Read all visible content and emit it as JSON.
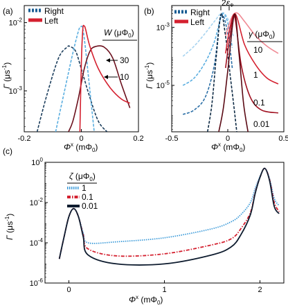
{
  "chart_data": [
    {
      "panel": "(a)",
      "type": "line",
      "xlabel": "Φˣ (mΦ₀)",
      "ylabel": "Γ (μs⁻¹)",
      "xlim": [
        -0.2,
        0.2
      ],
      "ylim_log10": [
        -3.6,
        -1.75
      ],
      "x_ticks": [
        "-0.2",
        "0",
        "0.2"
      ],
      "y_ticks": [
        "10⁻³",
        "10⁻²"
      ],
      "legend": [
        "Right",
        "Left"
      ],
      "legend2_title": "W (μΦ₀)",
      "annotations": [
        "30",
        "10"
      ],
      "series": [
        {
          "name": "Right",
          "param": "30",
          "style": "dashed",
          "color": "#1b3d5c",
          "x": [
            -0.155,
            -0.12,
            -0.08,
            -0.05,
            -0.04,
            -0.02,
            0.0,
            0.03,
            0.06,
            0.09
          ],
          "y": [
            -3.6,
            -3.05,
            -2.52,
            -2.36,
            -2.35,
            -2.42,
            -2.68,
            -3.1,
            -3.45,
            -3.6
          ]
        },
        {
          "name": "Right",
          "param": "10",
          "style": "dashed",
          "color": "#5aaee0",
          "x": [
            -0.09,
            -0.06,
            -0.03,
            -0.01,
            -0.002,
            0.005,
            0.015,
            0.03,
            0.045
          ],
          "y": [
            -3.6,
            -3.02,
            -2.45,
            -2.12,
            -2.06,
            -2.09,
            -2.4,
            -3.0,
            -3.6
          ]
        },
        {
          "name": "Left",
          "param": "30",
          "style": "solid",
          "color": "#6b0f1c",
          "x": [
            -0.045,
            -0.03,
            -0.01,
            0.01,
            0.03,
            0.05,
            0.08,
            0.11,
            0.14,
            0.17
          ],
          "y": [
            -3.6,
            -3.45,
            -3.1,
            -2.68,
            -2.42,
            -2.35,
            -2.36,
            -2.52,
            -2.9,
            -3.25
          ]
        },
        {
          "name": "Left",
          "param": "10",
          "style": "solid",
          "color": "#d4202f",
          "x": [
            -0.005,
            0.0,
            0.005,
            0.01,
            0.015,
            0.03,
            0.06,
            0.1,
            0.14,
            0.17
          ],
          "y": [
            -3.6,
            -2.6,
            -2.1,
            -2.05,
            -2.1,
            -2.35,
            -2.68,
            -2.95,
            -3.12,
            -3.18
          ]
        }
      ]
    },
    {
      "panel": "(b)",
      "type": "line",
      "xlabel": "Φˣ (mΦ₀)",
      "ylabel": "Γ (μs⁻¹)",
      "xlim": [
        -0.5,
        0.5
      ],
      "ylim_log10": [
        -6.6,
        -2.25
      ],
      "x_ticks": [
        "-0.5",
        "0",
        "0.5"
      ],
      "y_ticks": [
        "10⁻⁵",
        "10⁻³"
      ],
      "legend": [
        "Right",
        "Left"
      ],
      "legend2_title": "γ (μΦ₀)",
      "top_annotation": "2ε_Φ",
      "annotations": [
        "10",
        "1",
        "0.1",
        "0.01"
      ],
      "series": [
        {
          "name": "Right",
          "param": "10",
          "style": "dashed",
          "color": "#a8d4f0",
          "x": [
            -0.4,
            -0.3,
            -0.2,
            -0.12,
            -0.05,
            0.0,
            0.05
          ],
          "y": [
            -4.0,
            -3.65,
            -3.2,
            -2.8,
            -2.5,
            -2.7,
            -3.3
          ]
        },
        {
          "name": "Right",
          "param": "1",
          "style": "dashed",
          "color": "#5aaee0",
          "x": [
            -0.4,
            -0.3,
            -0.2,
            -0.12,
            -0.05,
            0.0,
            0.04
          ],
          "y": [
            -5.0,
            -4.75,
            -4.2,
            -3.5,
            -2.55,
            -2.85,
            -3.7
          ]
        },
        {
          "name": "Right",
          "param": "0.1",
          "style": "dashed",
          "color": "#2a6ea6",
          "x": [
            -0.4,
            -0.3,
            -0.2,
            -0.12,
            -0.06,
            0.0,
            0.04
          ],
          "y": [
            -6.0,
            -5.85,
            -5.4,
            -4.3,
            -2.6,
            -3.2,
            -4.4
          ]
        },
        {
          "name": "Right",
          "param": "0.01",
          "style": "dashed",
          "color": "#0e2a44",
          "x": [
            -0.18,
            -0.14,
            -0.1,
            -0.06,
            -0.02,
            0.02,
            0.06,
            0.08
          ],
          "y": [
            -6.6,
            -5.6,
            -3.9,
            -2.55,
            -3.3,
            -4.6,
            -5.9,
            -6.6
          ]
        },
        {
          "name": "Left",
          "param": "10",
          "style": "solid",
          "color": "#f08a94",
          "x": [
            -0.02,
            0.03,
            0.08,
            0.15,
            0.25,
            0.35,
            0.45
          ],
          "y": [
            -3.3,
            -2.7,
            -2.5,
            -2.8,
            -3.3,
            -3.65,
            -3.9
          ]
        },
        {
          "name": "Left",
          "param": "1",
          "style": "solid",
          "color": "#d4202f",
          "x": [
            -0.02,
            0.02,
            0.07,
            0.15,
            0.25,
            0.35,
            0.45
          ],
          "y": [
            -3.9,
            -3.0,
            -2.55,
            -3.6,
            -4.3,
            -4.75,
            -4.95
          ]
        },
        {
          "name": "Left",
          "param": "0.1",
          "style": "solid",
          "color": "#a01020",
          "x": [
            -0.02,
            0.02,
            0.06,
            0.12,
            0.2,
            0.3,
            0.45
          ],
          "y": [
            -4.4,
            -3.3,
            -2.6,
            -4.3,
            -5.4,
            -5.85,
            -5.95
          ]
        },
        {
          "name": "Left",
          "param": "0.01",
          "style": "solid",
          "color": "#5a0a14",
          "x": [
            -0.08,
            -0.04,
            0.0,
            0.06,
            0.1,
            0.14,
            0.18
          ],
          "y": [
            -6.6,
            -5.8,
            -4.5,
            -2.55,
            -3.9,
            -5.6,
            -6.6
          ]
        }
      ]
    },
    {
      "panel": "(c)",
      "type": "line",
      "xlabel": "Φˣ (mΦ₀)",
      "ylabel": "Γ (μs⁻¹)",
      "xlim": [
        -0.25,
        2.25
      ],
      "ylim_log10": [
        -6,
        0
      ],
      "x_ticks": [
        "0",
        "1",
        "2"
      ],
      "y_ticks": [
        "10⁻⁶",
        "10⁻⁴",
        "10⁻²",
        "10⁰"
      ],
      "legend_title": "ζ (μΦ₀)",
      "legend": [
        "1",
        "0.1",
        "0.01"
      ],
      "series": [
        {
          "name": "1",
          "style": "dotted",
          "color": "#3a9ad9",
          "x": [
            -0.1,
            -0.05,
            0.0,
            0.05,
            0.1,
            0.15,
            0.2,
            0.5,
            1.0,
            1.5,
            1.7,
            1.8,
            1.9,
            1.95,
            2.0,
            2.05,
            2.1,
            2.15,
            2.2
          ],
          "y": [
            -4.8,
            -3.7,
            -2.7,
            -2.3,
            -2.7,
            -3.5,
            -4.0,
            -3.95,
            -3.75,
            -3.3,
            -2.95,
            -2.6,
            -2.0,
            -1.3,
            -0.7,
            -0.3,
            -0.8,
            -1.8,
            -2.15
          ]
        },
        {
          "name": "0.1",
          "style": "dashdot",
          "color": "#d4202f",
          "x": [
            -0.1,
            -0.05,
            0.0,
            0.05,
            0.1,
            0.15,
            0.2,
            0.5,
            1.0,
            1.5,
            1.7,
            1.8,
            1.9,
            1.95,
            2.0,
            2.05,
            2.1,
            2.15,
            2.2
          ],
          "y": [
            -4.8,
            -3.7,
            -2.7,
            -2.3,
            -2.7,
            -3.6,
            -4.3,
            -4.65,
            -4.55,
            -4.1,
            -3.8,
            -3.3,
            -2.5,
            -1.5,
            -0.75,
            -0.3,
            -0.85,
            -2.0,
            -2.45
          ]
        },
        {
          "name": "0.01",
          "style": "solid",
          "color": "#0d1b2e",
          "x": [
            -0.1,
            -0.05,
            0.0,
            0.05,
            0.1,
            0.15,
            0.2,
            0.5,
            1.0,
            1.5,
            1.7,
            1.8,
            1.9,
            1.95,
            2.0,
            2.05,
            2.1,
            2.15,
            2.2
          ],
          "y": [
            -4.8,
            -3.7,
            -2.7,
            -2.3,
            -2.7,
            -3.7,
            -4.6,
            -5.05,
            -5.05,
            -4.6,
            -4.2,
            -3.6,
            -2.6,
            -1.55,
            -0.75,
            -0.3,
            -0.9,
            -2.2,
            -2.55
          ]
        }
      ]
    }
  ]
}
